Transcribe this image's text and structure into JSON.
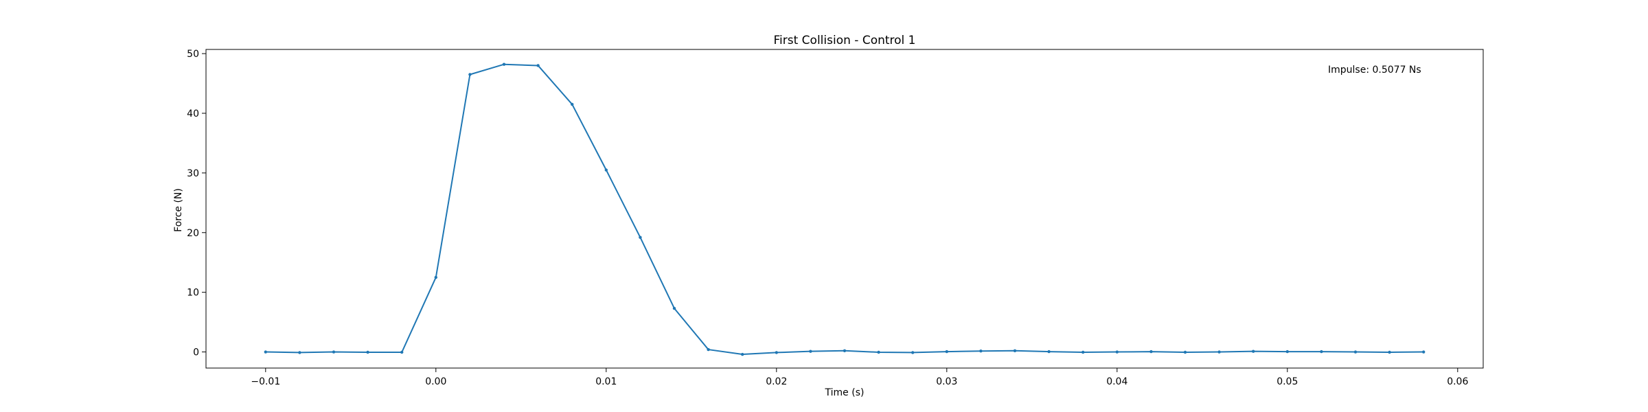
{
  "chart_data": {
    "type": "line",
    "title": "First Collision - Control 1",
    "xlabel": "Time (s)",
    "ylabel": "Force (N)",
    "xlim": [
      -0.0135,
      0.0615
    ],
    "ylim": [
      -2.7,
      50.7
    ],
    "xticks": [
      -0.01,
      0.0,
      0.01,
      0.02,
      0.03,
      0.04,
      0.05,
      0.06
    ],
    "xtick_labels": [
      "−0.01",
      "0.00",
      "0.01",
      "0.02",
      "0.03",
      "0.04",
      "0.05",
      "0.06"
    ],
    "yticks": [
      0,
      10,
      20,
      30,
      40,
      50
    ],
    "ytick_labels": [
      "0",
      "10",
      "20",
      "30",
      "40",
      "50"
    ],
    "grid": false,
    "annotation": "Impulse: 0.5077 Ns",
    "series_color": "#1f77b4",
    "series": [
      {
        "x": [
          -0.01,
          -0.008,
          -0.006,
          -0.004,
          -0.002,
          0.0,
          0.002,
          0.004,
          0.006,
          0.008,
          0.01,
          0.012,
          0.014,
          0.016,
          0.018,
          0.02,
          0.022,
          0.024,
          0.026,
          0.028,
          0.03,
          0.032,
          0.034,
          0.036,
          0.038,
          0.04,
          0.042,
          0.044,
          0.046,
          0.048,
          0.05,
          0.052,
          0.054,
          0.056,
          0.058
        ],
        "y": [
          0.0,
          -0.1,
          0.0,
          -0.05,
          -0.05,
          12.5,
          46.5,
          48.2,
          48.0,
          41.5,
          30.5,
          19.2,
          7.3,
          0.4,
          -0.4,
          -0.1,
          0.1,
          0.2,
          -0.05,
          -0.1,
          0.05,
          0.15,
          0.2,
          0.05,
          -0.05,
          0.0,
          0.05,
          -0.05,
          0.0,
          0.1,
          0.05,
          0.05,
          0.0,
          -0.05,
          0.0
        ]
      }
    ]
  }
}
